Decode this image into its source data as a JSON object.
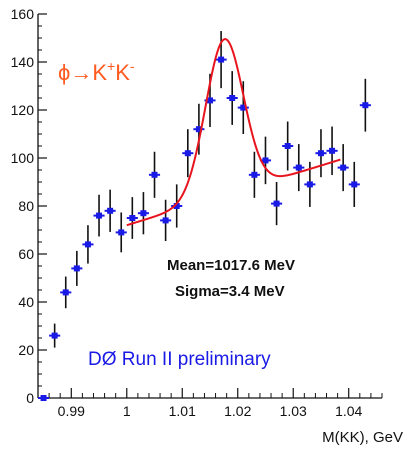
{
  "chart_data": {
    "type": "scatter",
    "title": "",
    "xlabel": "M(KK), GeV",
    "ylabel": "",
    "xlim": [
      0.984,
      1.046
    ],
    "ylim": [
      0,
      160
    ],
    "x_ticks": [
      {
        "value": 0.99,
        "label": "0.99"
      },
      {
        "value": 1.0,
        "label": "1"
      },
      {
        "value": 1.01,
        "label": "1.01"
      },
      {
        "value": 1.02,
        "label": "1.02"
      },
      {
        "value": 1.03,
        "label": "1.03"
      },
      {
        "value": 1.04,
        "label": "1.04"
      }
    ],
    "y_ticks": [
      {
        "value": 0,
        "label": "0"
      },
      {
        "value": 20,
        "label": "20"
      },
      {
        "value": 40,
        "label": "40"
      },
      {
        "value": 60,
        "label": "60"
      },
      {
        "value": 80,
        "label": "80"
      },
      {
        "value": 100,
        "label": "100"
      },
      {
        "value": 120,
        "label": "120"
      },
      {
        "value": 140,
        "label": "140"
      },
      {
        "value": 160,
        "label": "160"
      }
    ],
    "grid": false,
    "series": [
      {
        "kind": "data-with-errors",
        "color": "#1a1ae6",
        "x_half_width": 0.001,
        "points": [
          {
            "x": 0.985,
            "y": 0,
            "err": 0
          },
          {
            "x": 0.987,
            "y": 26,
            "err": 5
          },
          {
            "x": 0.989,
            "y": 44,
            "err": 6.6
          },
          {
            "x": 0.991,
            "y": 54,
            "err": 7.3
          },
          {
            "x": 0.993,
            "y": 64,
            "err": 8
          },
          {
            "x": 0.995,
            "y": 76,
            "err": 8.7
          },
          {
            "x": 0.997,
            "y": 78,
            "err": 8.8
          },
          {
            "x": 0.999,
            "y": 69,
            "err": 8.3
          },
          {
            "x": 1.001,
            "y": 75,
            "err": 8.7
          },
          {
            "x": 1.003,
            "y": 77,
            "err": 8.8
          },
          {
            "x": 1.005,
            "y": 93,
            "err": 9.6
          },
          {
            "x": 1.007,
            "y": 74,
            "err": 8.6
          },
          {
            "x": 1.009,
            "y": 80,
            "err": 9
          },
          {
            "x": 1.011,
            "y": 102,
            "err": 10
          },
          {
            "x": 1.013,
            "y": 112,
            "err": 10.6
          },
          {
            "x": 1.015,
            "y": 124,
            "err": 11.1
          },
          {
            "x": 1.017,
            "y": 141,
            "err": 11.9
          },
          {
            "x": 1.019,
            "y": 125,
            "err": 11.2
          },
          {
            "x": 1.021,
            "y": 121,
            "err": 11
          },
          {
            "x": 1.023,
            "y": 93,
            "err": 9.6
          },
          {
            "x": 1.025,
            "y": 99,
            "err": 9.9
          },
          {
            "x": 1.027,
            "y": 81,
            "err": 9
          },
          {
            "x": 1.029,
            "y": 105,
            "err": 10.2
          },
          {
            "x": 1.031,
            "y": 96,
            "err": 9.8
          },
          {
            "x": 1.033,
            "y": 89,
            "err": 9.4
          },
          {
            "x": 1.035,
            "y": 102,
            "err": 10
          },
          {
            "x": 1.037,
            "y": 103,
            "err": 10.1
          },
          {
            "x": 1.039,
            "y": 96,
            "err": 9.8
          },
          {
            "x": 1.041,
            "y": 89,
            "err": 9.4
          },
          {
            "x": 1.043,
            "y": 122,
            "err": 11
          }
        ]
      },
      {
        "kind": "fit-curve",
        "color": "#e8141e",
        "x_range": [
          1.0,
          1.0385
        ],
        "mean": 1.0176,
        "sigma": 0.0034,
        "background": {
          "a": 72,
          "b": 0.71
        },
        "peak_amplitude": 65
      }
    ],
    "annotations": {
      "reaction_prefix": "ϕ→K",
      "reaction_sup1": "+",
      "reaction_mid": "K",
      "reaction_sup2": "-",
      "mean": "Mean=1017.6 MeV",
      "sigma": "Sigma=3.4 MeV",
      "experiment": "DØ  Run II  preliminary"
    },
    "colors": {
      "axis": "#111111",
      "marker": "#1a1ae6",
      "errorbar": "#111111",
      "fit": "#e8141e",
      "reaction_text": "#ff5a1f",
      "experiment_text": "#1a1ae6"
    }
  }
}
